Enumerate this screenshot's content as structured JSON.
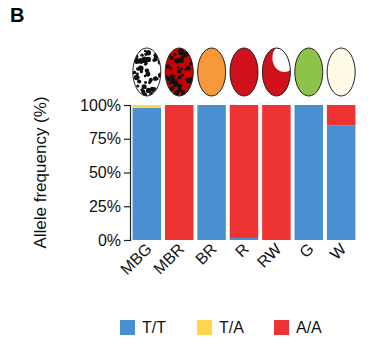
{
  "chart_data": {
    "type": "bar",
    "stacked": true,
    "annotations": [
      "B"
    ],
    "y_label": "Allele frequency (%)",
    "categories": [
      "MBG",
      "MBR",
      "BR",
      "R",
      "RW",
      "G",
      "W"
    ],
    "series": [
      {
        "name": "T/T",
        "color": "#4a8fd0",
        "values": [
          98,
          0,
          100,
          1.5,
          0,
          100,
          85
        ]
      },
      {
        "name": "T/A",
        "color": "#fdd64b",
        "values": [
          2,
          0,
          0,
          0,
          0,
          0,
          0
        ]
      },
      {
        "name": "A/A",
        "color": "#ee3333",
        "values": [
          0,
          100,
          0,
          98.5,
          100,
          0,
          15
        ]
      }
    ],
    "ylim": [
      0,
      100
    ],
    "yticks": [
      {
        "value": 0,
        "label": "0%"
      },
      {
        "value": 25,
        "label": "25%"
      },
      {
        "value": 50,
        "label": "50%"
      },
      {
        "value": 75,
        "label": "75%"
      },
      {
        "value": 100,
        "label": "100%"
      }
    ],
    "legend": "bottom",
    "grid": false
  }
}
